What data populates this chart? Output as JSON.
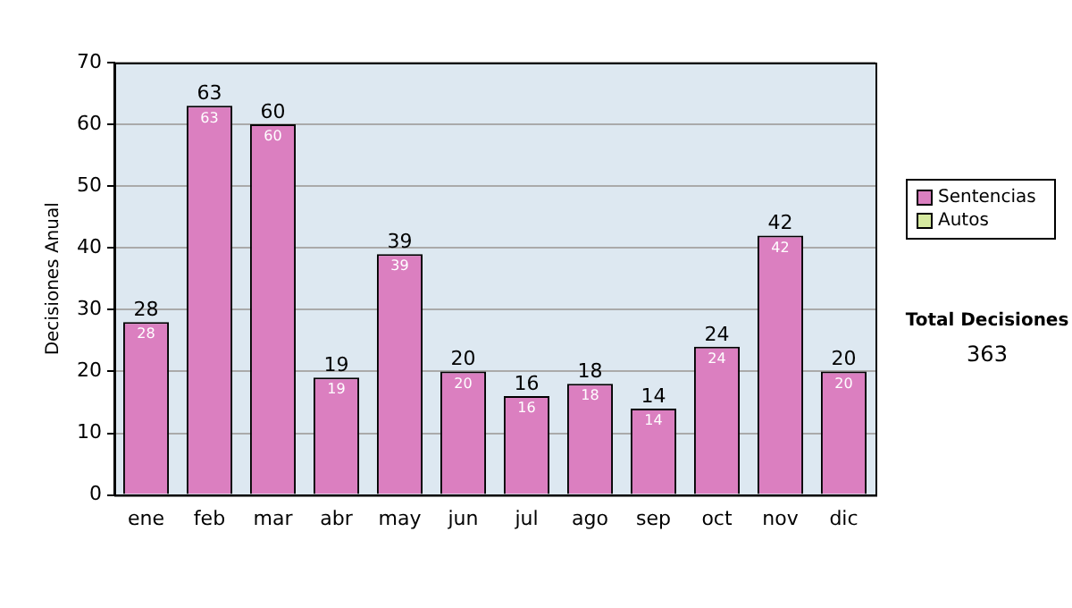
{
  "chart_data": {
    "type": "bar",
    "ylabel": "Decisiones Anual",
    "categories": [
      "ene",
      "feb",
      "mar",
      "abr",
      "may",
      "jun",
      "jul",
      "ago",
      "sep",
      "oct",
      "nov",
      "dic"
    ],
    "series": [
      {
        "name": "Sentencias",
        "color": "#db7fc0",
        "values": [
          28,
          63,
          60,
          19,
          39,
          20,
          16,
          18,
          14,
          24,
          42,
          20
        ],
        "value_labels": [
          "28",
          "63",
          "60",
          "19",
          "39",
          "20",
          "16",
          "18",
          "14",
          "24",
          "42",
          "20"
        ]
      },
      {
        "name": "Autos",
        "color": "#d6eaa0",
        "values": [
          0,
          0,
          0,
          0,
          0,
          0,
          0,
          0,
          0,
          0,
          0,
          0
        ],
        "value_labels": [
          null,
          null,
          null,
          null,
          null,
          null,
          null,
          null,
          null,
          null,
          null,
          null
        ]
      }
    ],
    "stacked": true,
    "totals": [
      "28",
      "63",
      "60",
      "19",
      "39",
      "20",
      "16",
      "18",
      "14",
      "24",
      "42",
      "20"
    ],
    "ylim": [
      0,
      70
    ],
    "yticks": [
      0,
      10,
      20,
      30,
      40,
      50,
      60,
      70
    ],
    "grid": "y",
    "legend": "right",
    "annotations": [
      "Total Decisiones",
      "363"
    ]
  }
}
